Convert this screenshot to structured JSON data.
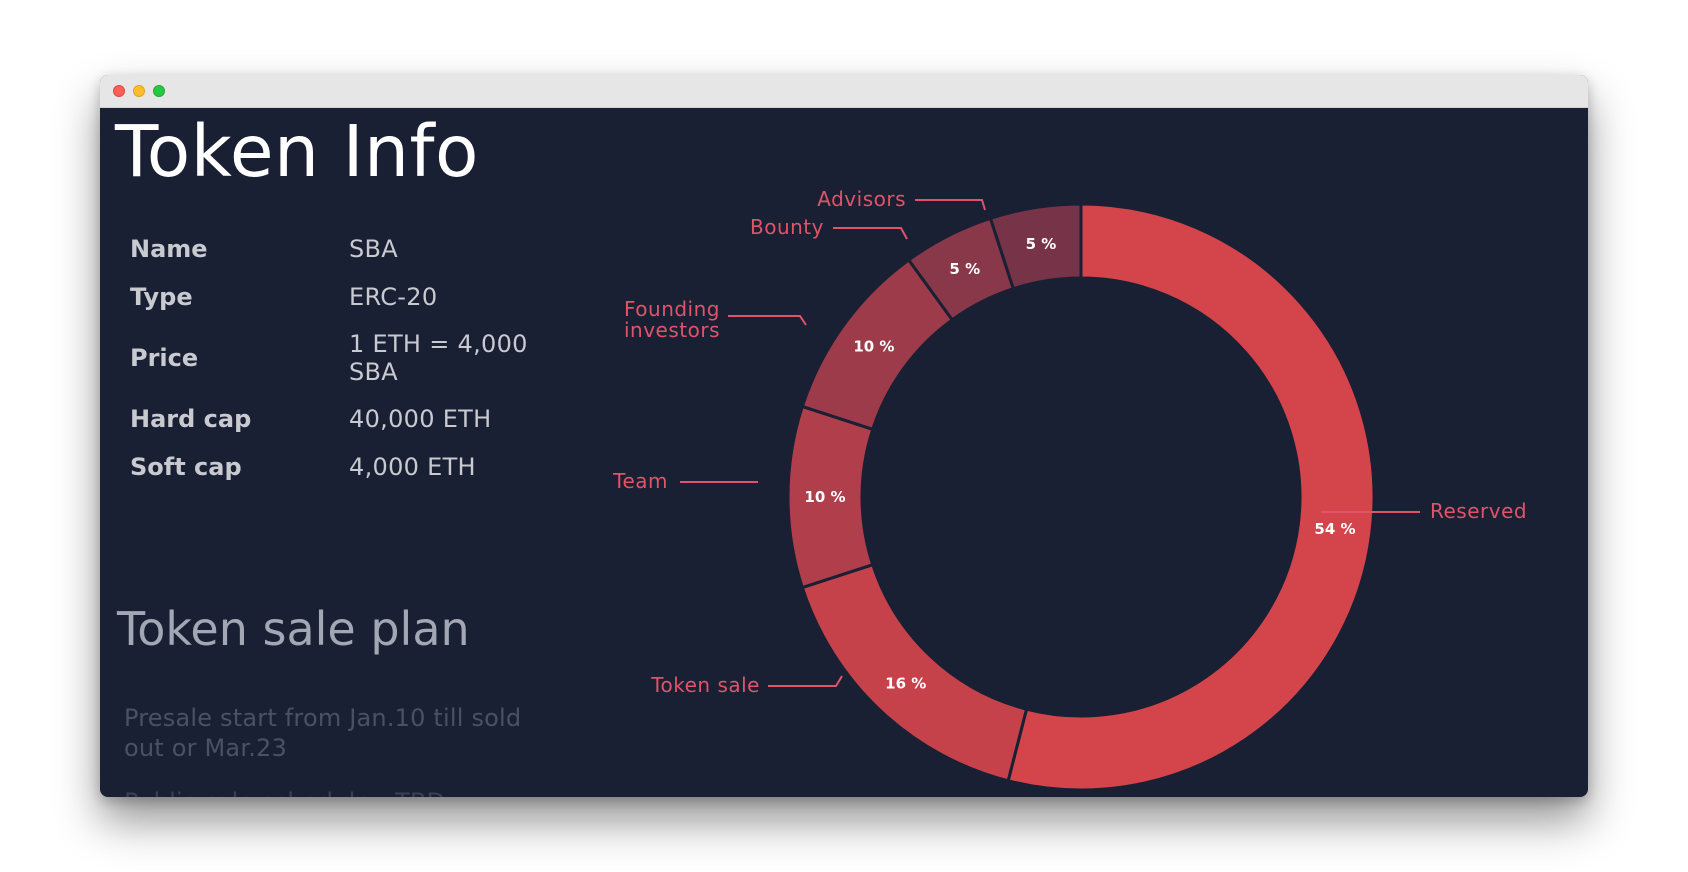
{
  "page": {
    "title": "Token Info",
    "token_info": [
      {
        "key": "Name",
        "value": "SBA"
      },
      {
        "key": "Type",
        "value": "ERC-20"
      },
      {
        "key": "Price",
        "value": "1 ETH = 4,000 SBA"
      },
      {
        "key": "Hard cap",
        "value": "40,000 ETH"
      },
      {
        "key": "Soft cap",
        "value": "4,000 ETH"
      }
    ],
    "sale_plan": {
      "title": "Token sale plan",
      "lines": [
        "Presale start from Jan.10 till sold out or Mar.23",
        "Public sale schedule - TBD"
      ]
    }
  },
  "colors": {
    "background": "#1a2034",
    "callout": "#e05368"
  },
  "chart_data": {
    "type": "pie",
    "style": "donut",
    "categories": [
      "Reserved",
      "Token sale",
      "Team",
      "Founding investors",
      "Bounty",
      "Advisors"
    ],
    "values": [
      54,
      16,
      10,
      10,
      5,
      5
    ],
    "labels": [
      "54 %",
      "16 %",
      "10 %",
      "10 %",
      "5 %",
      "5 %"
    ],
    "colors": [
      "#d4454b",
      "#c6424b",
      "#b03e4b",
      "#9d3b4a",
      "#893849",
      "#773448"
    ]
  }
}
